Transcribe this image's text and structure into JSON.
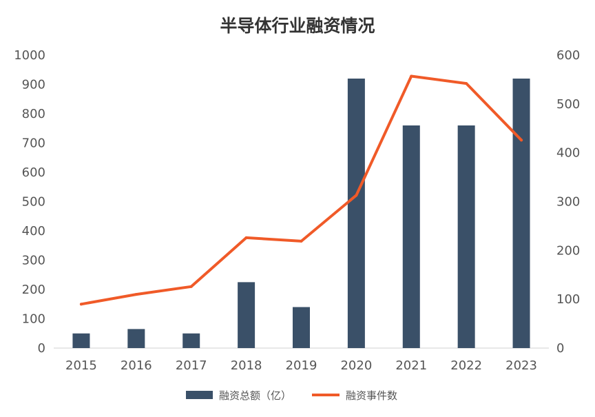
{
  "chart_data": {
    "type": "bar",
    "title": "半导体行业融资情况",
    "categories": [
      "2015",
      "2016",
      "2017",
      "2018",
      "2019",
      "2020",
      "2021",
      "2022",
      "2023"
    ],
    "series": [
      {
        "name": "融资总额（亿）",
        "type": "bar",
        "axis": "left",
        "color": "#3a5068",
        "values": [
          50,
          65,
          50,
          225,
          140,
          920,
          760,
          760,
          920
        ]
      },
      {
        "name": "融资事件数",
        "type": "line",
        "axis": "right",
        "color": "#f05a28",
        "values": [
          90,
          110,
          126,
          226,
          219,
          313,
          557,
          542,
          426
        ]
      }
    ],
    "y_left": {
      "min": 0,
      "max": 1000,
      "ticks": [
        "0",
        "100",
        "200",
        "300",
        "400",
        "500",
        "600",
        "700",
        "800",
        "900",
        "1000"
      ]
    },
    "y_right": {
      "min": 0,
      "max": 600,
      "ticks": [
        "0",
        "100",
        "200",
        "300",
        "400",
        "500",
        "600"
      ]
    },
    "grid": false,
    "legend_position": "bottom"
  }
}
